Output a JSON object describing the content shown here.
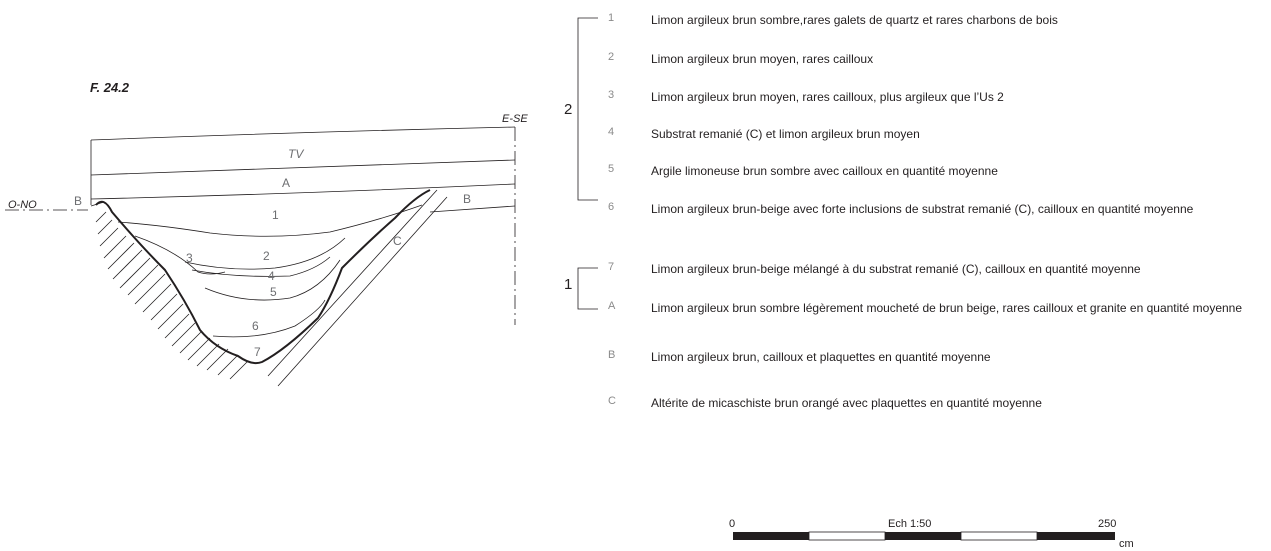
{
  "figure": {
    "title": "F. 24.2",
    "orientation_left": "O-NO",
    "orientation_right": "E-SE",
    "layer_labels": {
      "tv": "TV",
      "a": "A",
      "b_left": "B",
      "b_right": "B",
      "l1": "1",
      "l2": "2",
      "l3": "3",
      "l4": "4",
      "l5": "5",
      "l6": "6",
      "l7": "7",
      "c": "C"
    }
  },
  "legend": {
    "groups": [
      {
        "label": "2"
      },
      {
        "label": "1"
      }
    ],
    "items": [
      {
        "code": "1",
        "text": "Limon argileux brun sombre,rares galets de quartz et rares charbons de bois"
      },
      {
        "code": "2",
        "text": "Limon argileux brun moyen, rares cailloux"
      },
      {
        "code": "3",
        "text": "Limon argileux brun moyen, rares cailloux, plus argileux que l’Us 2"
      },
      {
        "code": "4",
        "text": "Substrat remanié (C) et limon argileux brun moyen"
      },
      {
        "code": "5",
        "text": "Argile limoneuse brun sombre avec cailloux en quantité moyenne"
      },
      {
        "code": "6",
        "text": "Limon argileux brun-beige avec forte inclusions de substrat remanié (C), cailloux en quantité moyenne"
      },
      {
        "code": "7",
        "text": "Limon argileux brun-beige mélangé à du substrat remanié (C), cailloux en quantité moyenne"
      },
      {
        "code": "A",
        "text": "Limon argileux brun sombre légèrement moucheté de brun beige, rares cailloux et granite en quantité moyenne"
      },
      {
        "code": "B",
        "text": "Limon argileux brun, cailloux et plaquettes en quantité moyenne"
      },
      {
        "code": "C",
        "text": "Altérite de micaschiste brun orangé avec plaquettes en quantité moyenne"
      }
    ]
  },
  "scale_bar": {
    "start": "0",
    "end": "250",
    "label": "Ech 1:50",
    "unit": "cm"
  }
}
